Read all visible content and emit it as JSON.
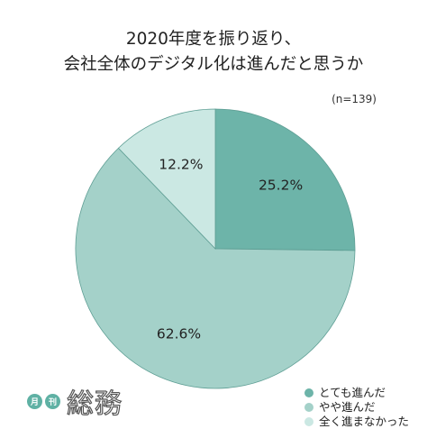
{
  "chart_data": {
    "type": "pie",
    "title_lines": [
      "2020年度を振り返り、",
      "会社全体のデジタル化は進んだと思うか"
    ],
    "note": "(n=139)",
    "categories": [
      "とても進んだ",
      "やや進んだ",
      "全く進まなかった"
    ],
    "values": [
      25.2,
      62.6,
      12.2
    ],
    "value_labels": [
      "25.2%",
      "62.6%",
      "12.2%"
    ],
    "colors": [
      "#6db4a9",
      "#a4d1c9",
      "#cbe8e3"
    ],
    "legend_position": "bottom-right",
    "start_angle": "12 o'clock",
    "direction": "clockwise"
  },
  "logo": {
    "badge_1": "月",
    "badge_2": "刊",
    "text": "総務"
  }
}
